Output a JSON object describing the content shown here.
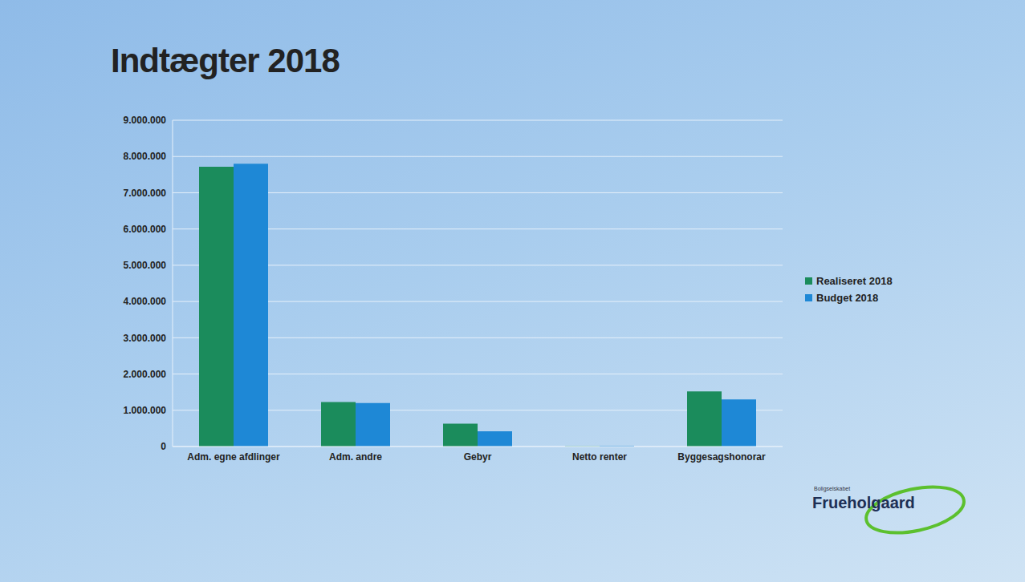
{
  "chart_data": {
    "type": "bar",
    "title": "Indtægter 2018",
    "categories": [
      "Adm. egne afdlinger",
      "Adm. andre",
      "Gebyr",
      "Netto renter",
      "Byggesagshonorar"
    ],
    "series": [
      {
        "name": "Realiseret 2018",
        "color": "#1b8c5c",
        "values": [
          7720000,
          1230000,
          630000,
          10000,
          1520000
        ]
      },
      {
        "name": "Budget 2018",
        "color": "#1e88d6",
        "values": [
          7800000,
          1200000,
          420000,
          20000,
          1300000
        ]
      }
    ],
    "ylim": [
      0,
      9000000
    ],
    "yticks": [
      0,
      {
        "value": 1000000,
        "label": "1.000.000"
      },
      {
        "value": 2000000,
        "label": "2.000.000"
      },
      {
        "value": 3000000,
        "label": "3.000.000"
      },
      {
        "value": 4000000,
        "label": "4.000.000"
      },
      {
        "value": 5000000,
        "label": "5.000.000"
      },
      {
        "value": 6000000,
        "label": "6.000.000"
      },
      {
        "value": 7000000,
        "label": "7.000.000"
      },
      {
        "value": 8000000,
        "label": "8.000.000"
      },
      {
        "value": 9000000,
        "label": "9.000.000"
      }
    ],
    "grid": true,
    "legend": "right",
    "logo": "Frueholgaard",
    "logo_subtitle": "Boligselskabet"
  }
}
